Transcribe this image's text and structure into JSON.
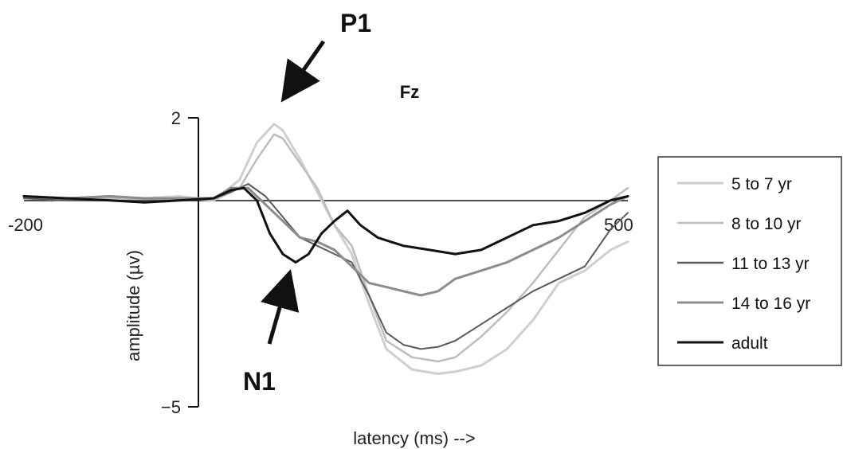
{
  "chart_data": {
    "type": "line",
    "title": "Fz",
    "xlabel": "latency (ms)  -->",
    "ylabel": "amplitude (µv)",
    "xlim": [
      -200,
      500
    ],
    "ylim": [
      -5,
      2
    ],
    "x_tick_labels": [
      "-200",
      "500"
    ],
    "y_tick_labels": [
      "2",
      "−5"
    ],
    "grid": false,
    "legend_position": "right",
    "annotations": [
      {
        "text": "P1",
        "x": 95,
        "y": 1.8
      },
      {
        "text": "N1",
        "x": 100,
        "y": -1.6
      }
    ],
    "series": [
      {
        "name": "5 to 7 yr",
        "color": "#cfcfcf",
        "width": 3,
        "points": [
          [
            -200,
            0.1
          ],
          [
            -150,
            0.05
          ],
          [
            -100,
            0.1
          ],
          [
            -60,
            0.05
          ],
          [
            -20,
            0.1
          ],
          [
            20,
            0.0
          ],
          [
            50,
            0.5
          ],
          [
            70,
            1.4
          ],
          [
            90,
            1.85
          ],
          [
            100,
            1.7
          ],
          [
            120,
            1.0
          ],
          [
            140,
            0.2
          ],
          [
            160,
            -0.6
          ],
          [
            180,
            -1.3
          ],
          [
            200,
            -2.5
          ],
          [
            220,
            -3.6
          ],
          [
            250,
            -4.1
          ],
          [
            280,
            -4.2
          ],
          [
            300,
            -4.15
          ],
          [
            330,
            -4.0
          ],
          [
            360,
            -3.6
          ],
          [
            390,
            -2.9
          ],
          [
            420,
            -2.0
          ],
          [
            450,
            -1.7
          ],
          [
            480,
            -1.2
          ],
          [
            500,
            -1.0
          ]
        ]
      },
      {
        "name": "8 to 10 yr",
        "color": "#bdbdbd",
        "width": 2.5,
        "points": [
          [
            -200,
            0.05
          ],
          [
            -150,
            0.0
          ],
          [
            -100,
            0.05
          ],
          [
            -60,
            0.05
          ],
          [
            -20,
            0.05
          ],
          [
            20,
            0.0
          ],
          [
            50,
            0.3
          ],
          [
            70,
            1.0
          ],
          [
            90,
            1.6
          ],
          [
            100,
            1.5
          ],
          [
            120,
            0.9
          ],
          [
            140,
            0.3
          ],
          [
            160,
            -0.6
          ],
          [
            180,
            -1.1
          ],
          [
            200,
            -2.3
          ],
          [
            220,
            -3.4
          ],
          [
            250,
            -3.8
          ],
          [
            280,
            -3.9
          ],
          [
            300,
            -3.8
          ],
          [
            330,
            -3.3
          ],
          [
            360,
            -2.7
          ],
          [
            390,
            -2.0
          ],
          [
            420,
            -1.2
          ],
          [
            450,
            -0.4
          ],
          [
            480,
            0.0
          ],
          [
            500,
            0.3
          ]
        ]
      },
      {
        "name": "11 to 13 yr",
        "color": "#5a5a5a",
        "width": 2,
        "points": [
          [
            -200,
            0.05
          ],
          [
            -150,
            0.0
          ],
          [
            -100,
            0.0
          ],
          [
            -60,
            0.0
          ],
          [
            -20,
            0.0
          ],
          [
            20,
            0.05
          ],
          [
            40,
            0.2
          ],
          [
            60,
            0.4
          ],
          [
            80,
            0.1
          ],
          [
            100,
            -0.4
          ],
          [
            120,
            -0.9
          ],
          [
            140,
            -1.1
          ],
          [
            160,
            -1.3
          ],
          [
            180,
            -1.5
          ],
          [
            200,
            -2.3
          ],
          [
            220,
            -3.2
          ],
          [
            240,
            -3.5
          ],
          [
            260,
            -3.6
          ],
          [
            280,
            -3.55
          ],
          [
            300,
            -3.4
          ],
          [
            330,
            -3.0
          ],
          [
            360,
            -2.6
          ],
          [
            390,
            -2.2
          ],
          [
            420,
            -1.9
          ],
          [
            450,
            -1.6
          ],
          [
            480,
            -0.7
          ],
          [
            500,
            -0.3
          ]
        ]
      },
      {
        "name": "14 to 16 yr",
        "color": "#8c8c8c",
        "width": 3,
        "points": [
          [
            -200,
            0.1
          ],
          [
            -150,
            0.05
          ],
          [
            -100,
            0.1
          ],
          [
            -60,
            0.05
          ],
          [
            -20,
            0.05
          ],
          [
            20,
            0.05
          ],
          [
            40,
            0.3
          ],
          [
            60,
            0.3
          ],
          [
            80,
            -0.1
          ],
          [
            100,
            -0.5
          ],
          [
            120,
            -0.9
          ],
          [
            140,
            -1.0
          ],
          [
            160,
            -1.2
          ],
          [
            180,
            -1.6
          ],
          [
            200,
            -2.0
          ],
          [
            220,
            -2.1
          ],
          [
            240,
            -2.2
          ],
          [
            260,
            -2.3
          ],
          [
            280,
            -2.2
          ],
          [
            300,
            -1.9
          ],
          [
            330,
            -1.7
          ],
          [
            360,
            -1.5
          ],
          [
            390,
            -1.2
          ],
          [
            420,
            -0.9
          ],
          [
            450,
            -0.5
          ],
          [
            480,
            -0.1
          ],
          [
            500,
            0.1
          ]
        ]
      },
      {
        "name": "adult",
        "color": "#111111",
        "width": 3,
        "points": [
          [
            -200,
            0.1
          ],
          [
            -150,
            0.05
          ],
          [
            -100,
            0.0
          ],
          [
            -60,
            -0.05
          ],
          [
            -20,
            0.0
          ],
          [
            20,
            0.05
          ],
          [
            40,
            0.25
          ],
          [
            55,
            0.3
          ],
          [
            70,
            0.0
          ],
          [
            85,
            -0.8
          ],
          [
            100,
            -1.3
          ],
          [
            115,
            -1.5
          ],
          [
            130,
            -1.3
          ],
          [
            145,
            -0.8
          ],
          [
            160,
            -0.5
          ],
          [
            175,
            -0.25
          ],
          [
            190,
            -0.6
          ],
          [
            210,
            -0.9
          ],
          [
            240,
            -1.1
          ],
          [
            270,
            -1.2
          ],
          [
            300,
            -1.3
          ],
          [
            330,
            -1.2
          ],
          [
            360,
            -0.9
          ],
          [
            390,
            -0.6
          ],
          [
            420,
            -0.5
          ],
          [
            450,
            -0.3
          ],
          [
            480,
            0.0
          ],
          [
            500,
            0.1
          ]
        ]
      }
    ]
  }
}
